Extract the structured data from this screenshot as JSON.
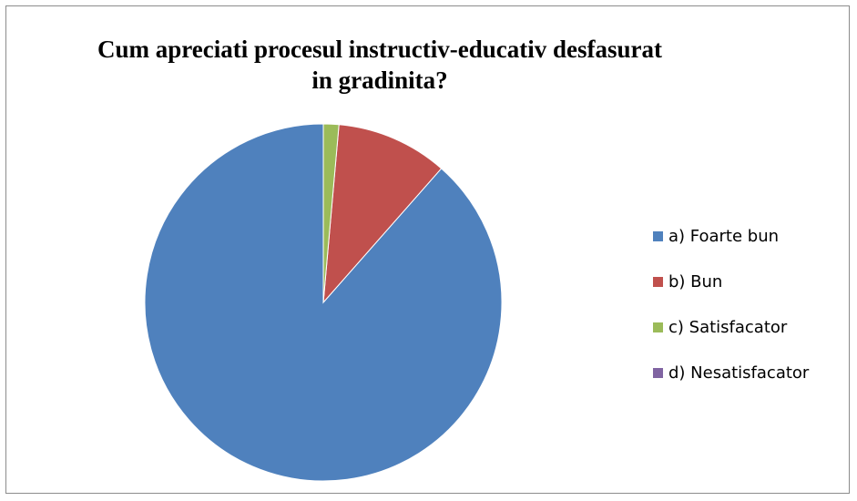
{
  "chart_data": {
    "type": "pie",
    "title": "Cum apreciati procesul instructiv-educativ desfasurat in gradinita?",
    "title_lines": [
      "Cum apreciati procesul instructiv-educativ desfasurat",
      "in gradinita?"
    ],
    "categories": [
      "a) Foarte bun",
      "b) Bun",
      "c) Satisfacator",
      "d) Nesatisfacator"
    ],
    "values": [
      88.5,
      10.1,
      1.4,
      0
    ],
    "colors": [
      "#4f81bd",
      "#c0504d",
      "#9bbb59",
      "#8064a2"
    ],
    "start_angle_deg": 0,
    "direction": "clockwise",
    "legend_position": "right"
  }
}
